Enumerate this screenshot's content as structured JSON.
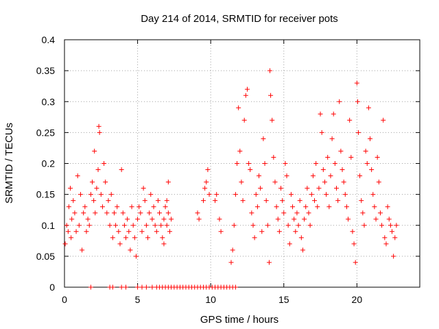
{
  "chart_data": {
    "type": "scatter",
    "title": "Day 214 of 2014, SRMTID for receiver pots",
    "xlabel": "GPS time / hours",
    "ylabel": "SRMTID / TECUs",
    "xlim": [
      0,
      24.3
    ],
    "ylim": [
      0,
      0.4
    ],
    "xticks": [
      0,
      5,
      10,
      15,
      20
    ],
    "xtick_labels": [
      "0",
      "5",
      "10",
      "15",
      "20"
    ],
    "yticks": [
      0,
      0.05,
      0.1,
      0.15,
      0.2,
      0.25,
      0.3,
      0.35,
      0.4
    ],
    "ytick_labels": [
      "0",
      "0.05",
      "0.1",
      "0.15",
      "0.2",
      "0.25",
      "0.3",
      "0.35",
      "0.4"
    ],
    "grid": true,
    "marker": "+",
    "marker_color": "#ff0000",
    "series": [
      {
        "name": "SRMTID",
        "points": [
          [
            0.05,
            0.07
          ],
          [
            0.15,
            0.1
          ],
          [
            0.25,
            0.09
          ],
          [
            0.3,
            0.13
          ],
          [
            0.4,
            0.16
          ],
          [
            0.45,
            0.08
          ],
          [
            0.5,
            0.11
          ],
          [
            0.6,
            0.14
          ],
          [
            0.7,
            0.12
          ],
          [
            0.8,
            0.09
          ],
          [
            0.9,
            0.18
          ],
          [
            1.0,
            0.1
          ],
          [
            1.1,
            0.15
          ],
          [
            1.2,
            0.06
          ],
          [
            1.3,
            0.12
          ],
          [
            1.4,
            0.13
          ],
          [
            1.5,
            0.09
          ],
          [
            1.6,
            0.11
          ],
          [
            1.7,
            0.1
          ],
          [
            1.8,
            0.15
          ],
          [
            1.9,
            0.17
          ],
          [
            2.0,
            0.14
          ],
          [
            2.05,
            0.22
          ],
          [
            2.1,
            0.12
          ],
          [
            2.2,
            0.16
          ],
          [
            2.3,
            0.19
          ],
          [
            2.35,
            0.26
          ],
          [
            2.4,
            0.25
          ],
          [
            2.5,
            0.15
          ],
          [
            2.6,
            0.13
          ],
          [
            2.7,
            0.2
          ],
          [
            2.8,
            0.17
          ],
          [
            2.9,
            0.12
          ],
          [
            3.0,
            0.14
          ],
          [
            3.1,
            0.1
          ],
          [
            3.2,
            0.15
          ],
          [
            3.3,
            0.08
          ],
          [
            3.4,
            0.12
          ],
          [
            3.5,
            0.1
          ],
          [
            3.6,
            0.13
          ],
          [
            3.7,
            0.09
          ],
          [
            3.8,
            0.07
          ],
          [
            3.9,
            0.19
          ],
          [
            4.0,
            0.12
          ],
          [
            4.1,
            0.1
          ],
          [
            4.2,
            0.08
          ],
          [
            4.3,
            0.11
          ],
          [
            4.4,
            0.09
          ],
          [
            4.5,
            0.06
          ],
          [
            4.6,
            0.13
          ],
          [
            4.7,
            0.1
          ],
          [
            4.8,
            0.08
          ],
          [
            4.9,
            0.05
          ],
          [
            5.0,
            0.11
          ],
          [
            5.1,
            0.13
          ],
          [
            5.2,
            0.12
          ],
          [
            5.3,
            0.09
          ],
          [
            5.4,
            0.16
          ],
          [
            5.5,
            0.14
          ],
          [
            5.6,
            0.1
          ],
          [
            5.7,
            0.08
          ],
          [
            5.8,
            0.12
          ],
          [
            5.9,
            0.15
          ],
          [
            6.0,
            0.11
          ],
          [
            6.1,
            0.13
          ],
          [
            6.2,
            0.1
          ],
          [
            6.3,
            0.09
          ],
          [
            6.4,
            0.14
          ],
          [
            6.5,
            0.12
          ],
          [
            6.6,
            0.1
          ],
          [
            6.7,
            0.08
          ],
          [
            6.8,
            0.11
          ],
          [
            6.9,
            0.13
          ],
          [
            7.0,
            0.1
          ],
          [
            7.1,
            0.12
          ],
          [
            7.2,
            0.09
          ],
          [
            7.3,
            0.11
          ],
          [
            7.1,
            0.17
          ],
          [
            7.0,
            0.14
          ],
          [
            6.8,
            0.07
          ],
          [
            9.1,
            0.12
          ],
          [
            9.2,
            0.11
          ],
          [
            9.5,
            0.14
          ],
          [
            9.6,
            0.16
          ],
          [
            9.7,
            0.17
          ],
          [
            9.8,
            0.19
          ],
          [
            9.9,
            0.15
          ],
          [
            10.3,
            0.14
          ],
          [
            10.4,
            0.15
          ],
          [
            10.6,
            0.11
          ],
          [
            10.7,
            0.09
          ],
          [
            11.4,
            0.04
          ],
          [
            11.5,
            0.06
          ],
          [
            11.6,
            0.1
          ],
          [
            11.7,
            0.15
          ],
          [
            11.8,
            0.2
          ],
          [
            11.9,
            0.29
          ],
          [
            12.0,
            0.22
          ],
          [
            12.1,
            0.17
          ],
          [
            12.2,
            0.14
          ],
          [
            12.3,
            0.27
          ],
          [
            12.4,
            0.31
          ],
          [
            12.5,
            0.32
          ],
          [
            12.6,
            0.2
          ],
          [
            12.7,
            0.19
          ],
          [
            12.8,
            0.12
          ],
          [
            12.9,
            0.1
          ],
          [
            13.0,
            0.08
          ],
          [
            13.1,
            0.15
          ],
          [
            13.2,
            0.13
          ],
          [
            13.3,
            0.18
          ],
          [
            13.4,
            0.16
          ],
          [
            13.5,
            0.09
          ],
          [
            13.6,
            0.24
          ],
          [
            13.7,
            0.2
          ],
          [
            13.8,
            0.14
          ],
          [
            13.9,
            0.1
          ],
          [
            14.0,
            0.04
          ],
          [
            14.05,
            0.35
          ],
          [
            14.1,
            0.31
          ],
          [
            14.2,
            0.27
          ],
          [
            14.3,
            0.21
          ],
          [
            14.4,
            0.17
          ],
          [
            14.5,
            0.13
          ],
          [
            14.6,
            0.11
          ],
          [
            14.7,
            0.09
          ],
          [
            14.8,
            0.16
          ],
          [
            14.9,
            0.14
          ],
          [
            15.0,
            0.12
          ],
          [
            15.1,
            0.2
          ],
          [
            15.2,
            0.18
          ],
          [
            15.3,
            0.1
          ],
          [
            15.4,
            0.07
          ],
          [
            15.5,
            0.15
          ],
          [
            15.6,
            0.13
          ],
          [
            15.7,
            0.11
          ],
          [
            15.8,
            0.09
          ],
          [
            15.9,
            0.12
          ],
          [
            16.0,
            0.1
          ],
          [
            16.1,
            0.14
          ],
          [
            16.2,
            0.08
          ],
          [
            16.3,
            0.06
          ],
          [
            16.4,
            0.11
          ],
          [
            16.5,
            0.13
          ],
          [
            16.6,
            0.16
          ],
          [
            16.7,
            0.12
          ],
          [
            16.8,
            0.1
          ],
          [
            16.9,
            0.15
          ],
          [
            17.0,
            0.18
          ],
          [
            17.1,
            0.14
          ],
          [
            17.2,
            0.2
          ],
          [
            17.3,
            0.13
          ],
          [
            17.4,
            0.16
          ],
          [
            17.5,
            0.28
          ],
          [
            17.6,
            0.25
          ],
          [
            17.7,
            0.19
          ],
          [
            17.8,
            0.17
          ],
          [
            17.9,
            0.15
          ],
          [
            18.0,
            0.21
          ],
          [
            18.1,
            0.13
          ],
          [
            18.2,
            0.18
          ],
          [
            18.3,
            0.24
          ],
          [
            18.4,
            0.28
          ],
          [
            18.5,
            0.2
          ],
          [
            18.6,
            0.16
          ],
          [
            18.7,
            0.14
          ],
          [
            18.8,
            0.3
          ],
          [
            18.9,
            0.22
          ],
          [
            19.0,
            0.19
          ],
          [
            19.1,
            0.17
          ],
          [
            19.2,
            0.15
          ],
          [
            19.3,
            0.13
          ],
          [
            19.4,
            0.11
          ],
          [
            19.5,
            0.27
          ],
          [
            19.6,
            0.21
          ],
          [
            19.7,
            0.09
          ],
          [
            19.8,
            0.07
          ],
          [
            19.9,
            0.04
          ],
          [
            20.0,
            0.33
          ],
          [
            20.05,
            0.3
          ],
          [
            20.1,
            0.25
          ],
          [
            20.2,
            0.18
          ],
          [
            20.3,
            0.14
          ],
          [
            20.4,
            0.12
          ],
          [
            20.5,
            0.1
          ],
          [
            20.6,
            0.22
          ],
          [
            20.7,
            0.2
          ],
          [
            20.8,
            0.29
          ],
          [
            20.9,
            0.24
          ],
          [
            21.0,
            0.19
          ],
          [
            21.1,
            0.15
          ],
          [
            21.2,
            0.13
          ],
          [
            21.3,
            0.11
          ],
          [
            21.4,
            0.21
          ],
          [
            21.5,
            0.17
          ],
          [
            21.6,
            0.12
          ],
          [
            21.7,
            0.1
          ],
          [
            21.8,
            0.27
          ],
          [
            21.9,
            0.08
          ],
          [
            22.0,
            0.07
          ],
          [
            22.1,
            0.13
          ],
          [
            22.2,
            0.11
          ],
          [
            22.3,
            0.1
          ],
          [
            22.4,
            0.09
          ],
          [
            22.5,
            0.05
          ],
          [
            22.6,
            0.08
          ],
          [
            22.7,
            0.1
          ],
          [
            1.8,
            0.0
          ],
          [
            3.1,
            0.0
          ],
          [
            3.3,
            0.0
          ],
          [
            3.9,
            0.0
          ],
          [
            4.2,
            0.0
          ],
          [
            5.0,
            0.0
          ],
          [
            5.3,
            0.0
          ],
          [
            5.6,
            0.0
          ],
          [
            6.0,
            0.0
          ],
          [
            6.3,
            0.0
          ],
          [
            6.5,
            0.0
          ],
          [
            6.7,
            0.0
          ],
          [
            6.9,
            0.0
          ],
          [
            7.1,
            0.0
          ],
          [
            7.3,
            0.0
          ],
          [
            7.5,
            0.0
          ],
          [
            7.7,
            0.0
          ],
          [
            7.9,
            0.0
          ],
          [
            8.1,
            0.0
          ],
          [
            8.3,
            0.0
          ],
          [
            8.5,
            0.0
          ],
          [
            8.7,
            0.0
          ],
          [
            8.9,
            0.0
          ],
          [
            9.1,
            0.0
          ],
          [
            9.3,
            0.0
          ],
          [
            9.5,
            0.0
          ],
          [
            9.7,
            0.0
          ],
          [
            9.9,
            0.0
          ],
          [
            10.1,
            0.0
          ],
          [
            10.3,
            0.0
          ],
          [
            10.5,
            0.0
          ],
          [
            10.7,
            0.0
          ],
          [
            10.9,
            0.0
          ],
          [
            11.1,
            0.0
          ],
          [
            11.3,
            0.0
          ],
          [
            11.5,
            0.0
          ],
          [
            11.7,
            0.0
          ]
        ]
      }
    ]
  }
}
